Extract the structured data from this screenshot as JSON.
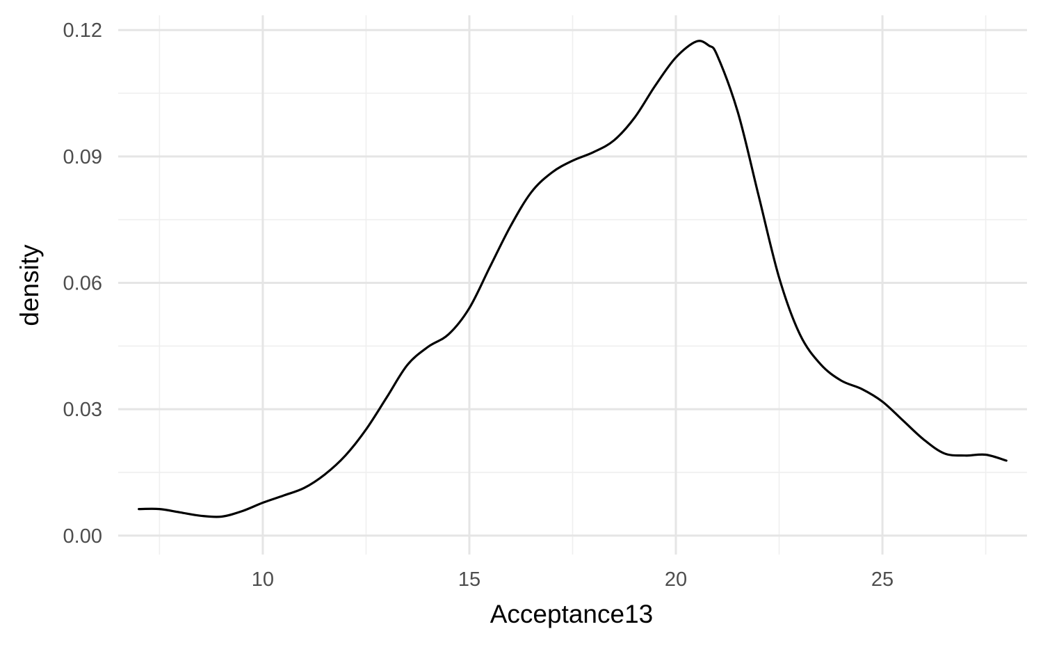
{
  "chart_data": {
    "type": "line",
    "geom": "density",
    "title": "",
    "xlabel": "Acceptance13",
    "ylabel": "density",
    "xlim": [
      6.5,
      28.5
    ],
    "ylim": [
      -0.0045,
      0.1235
    ],
    "x_ticks": [
      10,
      15,
      20,
      25
    ],
    "x_tick_labels": [
      "10",
      "15",
      "20",
      "25"
    ],
    "y_ticks": [
      0.0,
      0.03,
      0.06,
      0.09,
      0.12
    ],
    "y_tick_labels": [
      "0.00",
      "0.03",
      "0.06",
      "0.09",
      "0.12"
    ],
    "grid": true,
    "legend": "none",
    "line_color": "#000000",
    "series": [
      {
        "x": [
          7.0,
          7.5,
          8.0,
          8.5,
          9.0,
          9.5,
          10.0,
          10.5,
          11.0,
          11.5,
          12.0,
          12.5,
          13.0,
          13.5,
          14.0,
          14.5,
          15.0,
          15.5,
          16.0,
          16.5,
          17.0,
          17.5,
          18.0,
          18.5,
          19.0,
          19.5,
          20.0,
          20.5,
          20.8,
          21.0,
          21.5,
          22.0,
          22.5,
          23.0,
          23.5,
          24.0,
          24.5,
          25.0,
          25.5,
          26.0,
          26.5,
          27.0,
          27.5,
          28.0
        ],
        "y": [
          0.0063,
          0.0063,
          0.0055,
          0.0047,
          0.0045,
          0.0058,
          0.0078,
          0.0095,
          0.0113,
          0.0145,
          0.019,
          0.0252,
          0.0328,
          0.0405,
          0.0448,
          0.0478,
          0.054,
          0.0638,
          0.0735,
          0.0815,
          0.0862,
          0.089,
          0.091,
          0.0938,
          0.0992,
          0.1068,
          0.1135,
          0.1173,
          0.1163,
          0.114,
          0.1005,
          0.0808,
          0.0612,
          0.0478,
          0.0407,
          0.0368,
          0.0348,
          0.0318,
          0.0273,
          0.0228,
          0.0195,
          0.019,
          0.0192,
          0.0178
        ]
      }
    ]
  }
}
